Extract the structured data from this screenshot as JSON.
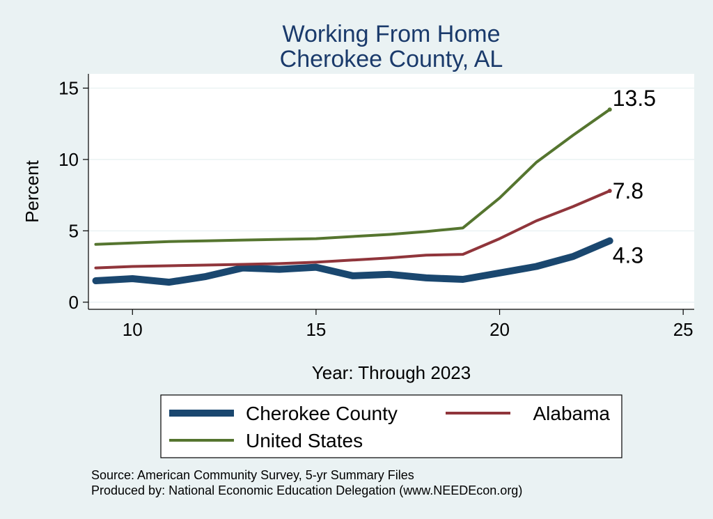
{
  "chart_data": {
    "type": "line",
    "title": "Working From Home",
    "subtitle": "Cherokee County, AL",
    "xlabel": "Year: Through 2023",
    "ylabel": "Percent",
    "xlim": [
      8.8,
      25.3
    ],
    "ylim": [
      -0.5,
      16
    ],
    "xticks": [
      10,
      15,
      20,
      25
    ],
    "yticks": [
      0,
      5,
      10,
      15
    ],
    "grid": true,
    "legend_position": "bottom",
    "x": [
      9,
      10,
      11,
      12,
      13,
      14,
      15,
      16,
      17,
      18,
      19,
      20,
      21,
      22,
      23
    ],
    "series": [
      {
        "name": "Cherokee County",
        "color": "#1a476f",
        "values": [
          1.5,
          1.65,
          1.4,
          1.8,
          2.4,
          2.3,
          2.45,
          1.85,
          1.95,
          1.7,
          1.6,
          2.05,
          2.5,
          3.2,
          4.3
        ],
        "end_label": "4.3"
      },
      {
        "name": "Alabama",
        "color": "#90353b",
        "values": [
          2.4,
          2.5,
          2.55,
          2.6,
          2.65,
          2.7,
          2.8,
          2.95,
          3.1,
          3.3,
          3.35,
          4.45,
          5.7,
          6.7,
          7.8
        ],
        "end_label": "7.8"
      },
      {
        "name": "United States",
        "color": "#55752f",
        "values": [
          4.05,
          4.15,
          4.25,
          4.3,
          4.35,
          4.4,
          4.45,
          4.6,
          4.75,
          4.95,
          5.2,
          7.3,
          9.8,
          11.7,
          13.5
        ],
        "end_label": "13.5"
      }
    ]
  },
  "source_note": "Source: American Community Survey, 5-yr Summary Files",
  "producer_note": "Produced by: National Economic Education Delegation (www.NEEDEcon.org)"
}
